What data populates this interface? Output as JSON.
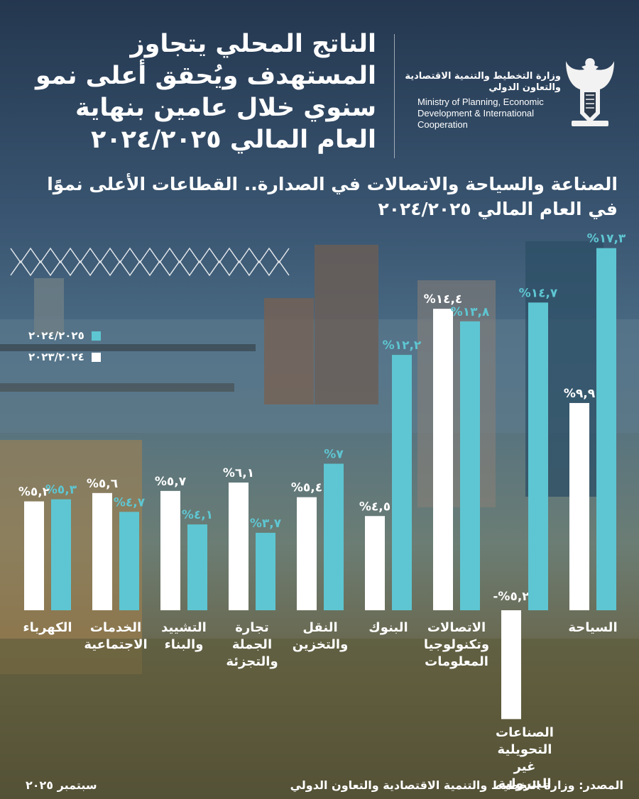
{
  "headline": "الناتج المحلي يتجاوز المستهدف ويُحقق أعلى نمو سنوي خلال عامين بنهاية العام المالي ٢٠٢٤/٢٠٢٥",
  "ministry": {
    "name_ar": "وزارة التخطيط والتنمية الاقتصادية والتعاون الدولي",
    "name_en": "Ministry of Planning, Economic Development & International Cooperation"
  },
  "subtitle": "الصناعة والسياحة والاتصالات في الصدارة.. القطاعات الأعلى نموًا في العام المالي ٢٠٢٤/٢٠٢٥",
  "footer": {
    "date": "سبتمبر ٢٠٢٥",
    "source": "المصدر: وزارة التخطيط والتنمية الاقتصادية والتعاون الدولي"
  },
  "colors": {
    "accent": "#5ec6d2",
    "white": "#ffffff"
  },
  "chart_data": {
    "type": "bar",
    "title": "الصناعة والسياحة والاتصالات في الصدارة.. القطاعات الأعلى نموًا في العام المالي ٢٠٢٤/٢٠٢٥",
    "unit": "%",
    "categories": [
      "الكهرباء",
      "الخدمات الاجتماعية",
      "التشييد والبناء",
      "تجارة الجملة والتجزئة",
      "النقل والتخزين",
      "البنوك",
      "الاتصالات وتكنولوجيا المعلومات",
      "الصناعات التحويلية غير البترولية",
      "السياحة"
    ],
    "series": [
      {
        "name": "٢٠٢٣/٢٠٢٤",
        "color": "#ffffff",
        "values": [
          5.2,
          5.6,
          5.7,
          6.1,
          5.4,
          4.5,
          14.4,
          -5.2,
          9.9
        ],
        "labels": [
          "%٥,٢",
          "%٥,٦",
          "%٥,٧",
          "%٦,١",
          "%٥,٤",
          "%٤,٥",
          "%١٤,٤",
          "-%٥,٢",
          "%٩,٩"
        ]
      },
      {
        "name": "٢٠٢٤/٢٠٢٥",
        "color": "#5ec6d2",
        "values": [
          5.3,
          4.7,
          4.1,
          3.7,
          7.0,
          12.2,
          13.8,
          14.7,
          17.3
        ],
        "labels": [
          "%٥,٣",
          "%٤,٧",
          "%٤,١",
          "%٣,٧",
          "%٧",
          "%١٢,٢",
          "%١٣,٨",
          "%١٤,٧",
          "%١٧,٣"
        ]
      }
    ],
    "legend": [
      "٢٠٢٤/٢٠٢٥",
      "٢٠٢٣/٢٠٢٤"
    ],
    "legend_position": "left",
    "ylim": [
      -5.2,
      17.3
    ],
    "grid": false
  }
}
